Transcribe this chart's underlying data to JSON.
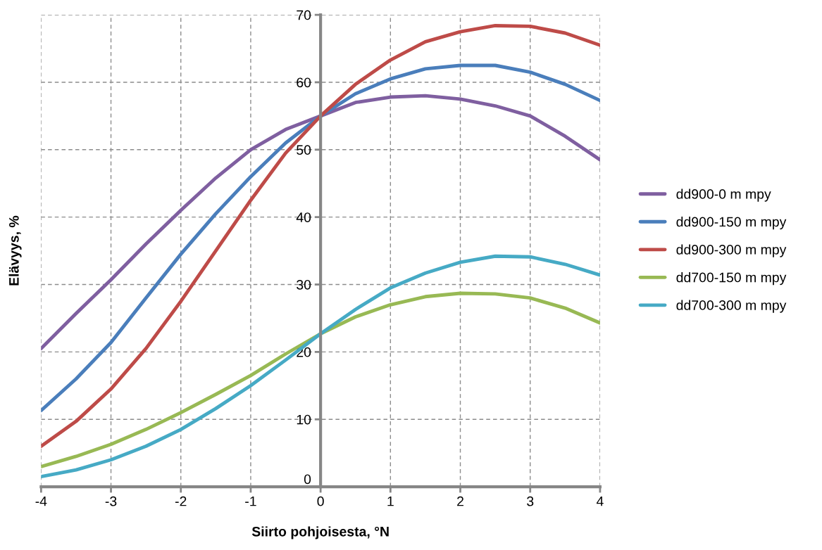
{
  "chart_data": {
    "type": "line",
    "xlabel": "Siirto pohjoisesta, °N",
    "ylabel": "Elävyys, %",
    "xlim": [
      -4,
      4
    ],
    "xticks": [
      -4,
      -3,
      -2,
      -1,
      0,
      1,
      2,
      3,
      4
    ],
    "ylim": [
      0,
      70
    ],
    "yticks": [
      0,
      10,
      20,
      30,
      40,
      50,
      60,
      70
    ],
    "grid": true,
    "legend": "right",
    "marker": "none",
    "line_style": "solid",
    "x": [
      -4,
      -3.5,
      -3,
      -2.5,
      -2,
      -1.5,
      -1,
      -0.5,
      0,
      0.5,
      1,
      1.5,
      2,
      2.5,
      3,
      3.5,
      4
    ],
    "series": [
      {
        "name": "dd900-0 m mpy",
        "color": "#7f5fa0",
        "values": [
          20.5,
          25.7,
          30.7,
          36,
          41,
          45.8,
          50,
          53,
          55,
          57,
          57.8,
          58,
          57.5,
          56.5,
          55,
          52,
          48.5
        ]
      },
      {
        "name": "dd900-150 m mpy",
        "color": "#4a7ebb",
        "values": [
          11.3,
          16,
          21.4,
          28,
          34.5,
          40.5,
          46,
          51,
          55,
          58.3,
          60.5,
          62,
          62.5,
          62.5,
          61.5,
          59.7,
          57.3
        ]
      },
      {
        "name": "dd900-300 m mpy",
        "color": "#be4b48",
        "values": [
          6,
          9.7,
          14.5,
          20.5,
          27.5,
          35,
          42.5,
          49.5,
          55,
          59.7,
          63.3,
          66,
          67.5,
          68.4,
          68.3,
          67.3,
          65.5
        ]
      },
      {
        "name": "dd700-150 m mpy",
        "color": "#98b954",
        "values": [
          3,
          4.5,
          6.3,
          8.5,
          11,
          13.7,
          16.5,
          19.7,
          22.7,
          25.2,
          27,
          28.2,
          28.7,
          28.6,
          28,
          26.5,
          24.3
        ]
      },
      {
        "name": "dd700-300 m mpy",
        "color": "#46aac5",
        "values": [
          1.5,
          2.5,
          4,
          6,
          8.5,
          11.6,
          15,
          18.8,
          22.7,
          26.3,
          29.5,
          31.7,
          33.3,
          34.2,
          34.1,
          33,
          31.4
        ]
      }
    ]
  }
}
